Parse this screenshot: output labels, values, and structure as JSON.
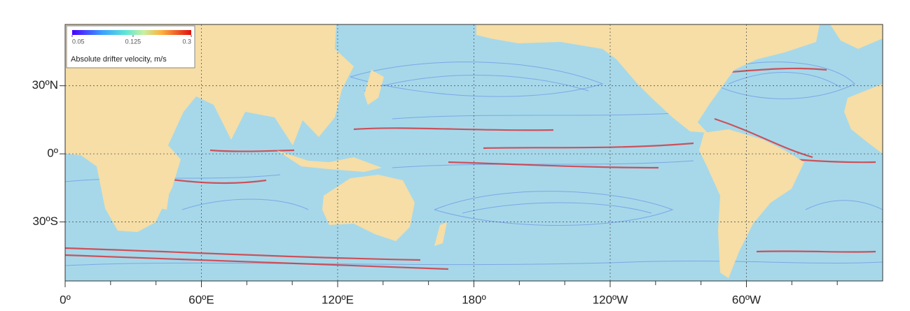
{
  "chart_data": {
    "type": "map",
    "xlim": [
      0,
      360
    ],
    "ylim": [
      -56,
      57
    ],
    "xticks": [
      {
        "value": 0,
        "label": "0º"
      },
      {
        "value": 60,
        "label": "60ºE"
      },
      {
        "value": 120,
        "label": "120ºE"
      },
      {
        "value": 180,
        "label": "180º"
      },
      {
        "value": 240,
        "label": "120ºW"
      },
      {
        "value": 300,
        "label": "60ºW"
      }
    ],
    "xminorticks": [
      20,
      40,
      80,
      100,
      140,
      160,
      200,
      220,
      260,
      280,
      320,
      340
    ],
    "yticks": [
      {
        "value": 30,
        "label": "30ºN"
      },
      {
        "value": 0,
        "label": "0º"
      },
      {
        "value": -30,
        "label": "30ºS"
      }
    ],
    "grid": true,
    "colorbar": {
      "label": "Absolute drifter velocity, m/s",
      "clim": [
        0.05,
        0.3
      ],
      "log": true,
      "ticks": [
        0.05,
        0.125,
        0.3
      ]
    }
  }
}
